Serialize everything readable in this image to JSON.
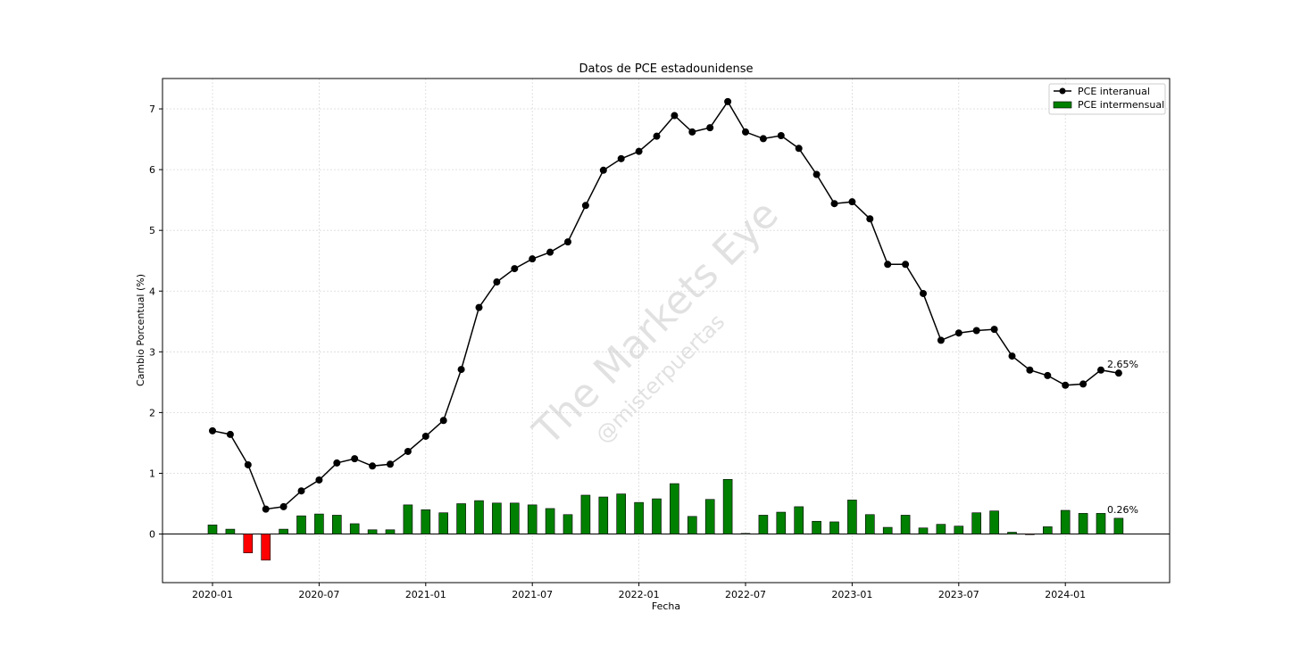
{
  "chart_data": {
    "type": "line+bar",
    "title": "Datos de PCE estadounidense",
    "xlabel": "Fecha",
    "ylabel": "Cambio Porcentual (%)",
    "ylim": [
      -0.8,
      7.5
    ],
    "yticks": [
      "0",
      "1",
      "2",
      "3",
      "4",
      "5",
      "6",
      "7"
    ],
    "yticks_values": [
      0,
      1,
      2,
      3,
      4,
      5,
      6,
      7
    ],
    "xticks": [
      "2020-01",
      "2020-07",
      "2021-01",
      "2021-07",
      "2022-01",
      "2022-07",
      "2023-01",
      "2023-07",
      "2024-01"
    ],
    "xticks_index": [
      0,
      6,
      12,
      18,
      24,
      30,
      36,
      42,
      48
    ],
    "grid": true,
    "legend_position": "top-right",
    "x": [
      "2020-01",
      "2020-02",
      "2020-03",
      "2020-04",
      "2020-05",
      "2020-06",
      "2020-07",
      "2020-08",
      "2020-09",
      "2020-10",
      "2020-11",
      "2020-12",
      "2021-01",
      "2021-02",
      "2021-03",
      "2021-04",
      "2021-05",
      "2021-06",
      "2021-07",
      "2021-08",
      "2021-09",
      "2021-10",
      "2021-11",
      "2021-12",
      "2022-01",
      "2022-02",
      "2022-03",
      "2022-04",
      "2022-05",
      "2022-06",
      "2022-07",
      "2022-08",
      "2022-09",
      "2022-10",
      "2022-11",
      "2022-12",
      "2023-01",
      "2023-02",
      "2023-03",
      "2023-04",
      "2023-05",
      "2023-06",
      "2023-07",
      "2023-08",
      "2023-09",
      "2023-10",
      "2023-11",
      "2023-12",
      "2024-01",
      "2024-02",
      "2024-03",
      "2024-04"
    ],
    "series": [
      {
        "name": "PCE interanual",
        "type": "line",
        "color": "#000000",
        "values": [
          1.7,
          1.64,
          1.14,
          0.41,
          0.45,
          0.71,
          0.89,
          1.17,
          1.24,
          1.12,
          1.15,
          1.36,
          1.61,
          1.87,
          2.71,
          3.73,
          4.15,
          4.37,
          4.53,
          4.64,
          4.81,
          5.41,
          5.99,
          6.18,
          6.3,
          6.55,
          6.89,
          6.62,
          6.69,
          7.12,
          6.62,
          6.51,
          6.56,
          6.35,
          5.92,
          5.44,
          5.47,
          5.19,
          4.44,
          4.44,
          3.96,
          3.19,
          3.31,
          3.35,
          3.37,
          2.93,
          2.7,
          2.61,
          2.45,
          2.47,
          2.7,
          2.65
        ]
      },
      {
        "name": "PCE intermensual",
        "type": "bar",
        "color": "#008000",
        "negative_color": "#ff0000",
        "values": [
          0.15,
          0.08,
          -0.31,
          -0.43,
          0.08,
          0.3,
          0.33,
          0.31,
          0.17,
          0.07,
          0.07,
          0.48,
          0.4,
          0.35,
          0.5,
          0.55,
          0.51,
          0.51,
          0.48,
          0.42,
          0.32,
          0.64,
          0.61,
          0.66,
          0.52,
          0.58,
          0.83,
          0.29,
          0.57,
          0.9,
          0.01,
          0.31,
          0.36,
          0.45,
          0.21,
          0.2,
          0.56,
          0.32,
          0.11,
          0.31,
          0.1,
          0.16,
          0.13,
          0.35,
          0.38,
          0.03,
          -0.01,
          0.12,
          0.39,
          0.34,
          0.34,
          0.26
        ]
      }
    ],
    "annotations": {
      "last_yoy": "2.65%",
      "last_mom": "0.26%"
    }
  },
  "watermark": {
    "main": "The Markets Eye",
    "handle": "@misterpuertas"
  }
}
